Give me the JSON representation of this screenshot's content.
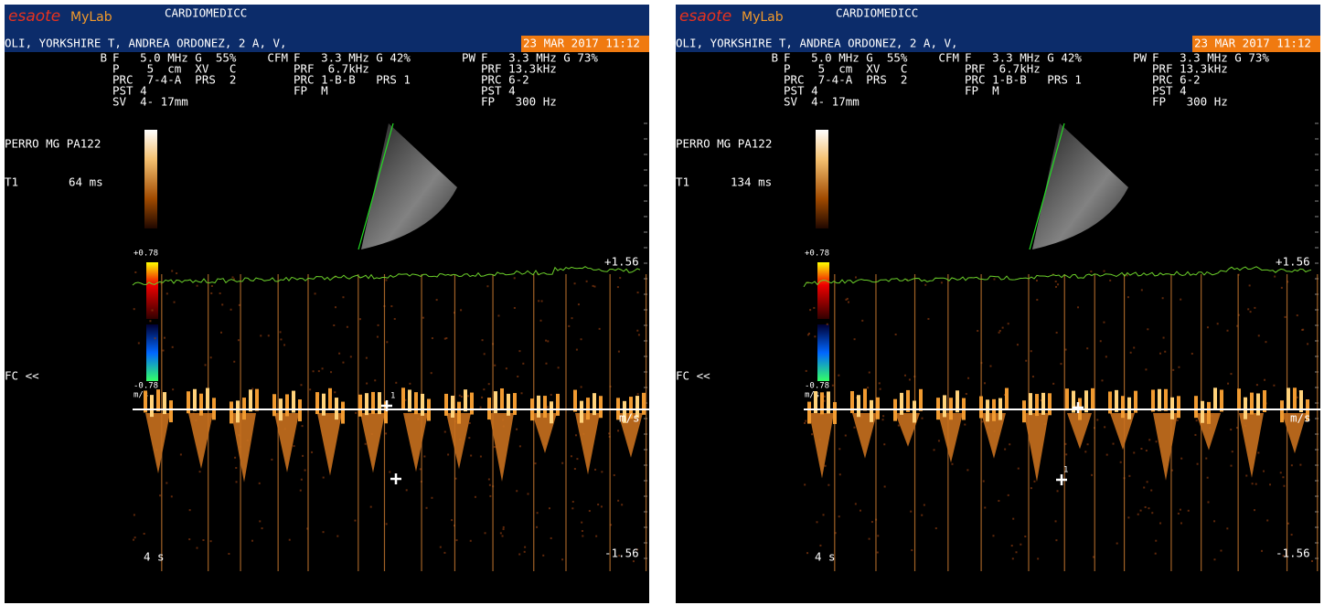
{
  "panels": [
    {
      "logo": {
        "brand": "esaote",
        "product": "MyLab"
      },
      "device": "CARDIOMEDICC",
      "patient": "OLI, YORKSHIRE T, ANDREA ORDONEZ, 2 A, V,",
      "datetime": "23 MAR 2017 11:12",
      "params": {
        "b": {
          "mode": "B",
          "lines": [
            "F   5.0 MHz G  55%",
            "P    5  cm  XV   C",
            "PRC  7-4-A  PRS  2",
            "PST 4",
            "SV  4- 17mm"
          ]
        },
        "cfm": {
          "mode": "CFM",
          "lines": [
            "F   3.3 MHz G 42%",
            "PRF  6.7kHz",
            "PRC 1-B-B   PRS 1",
            "FP  M"
          ]
        },
        "pw": {
          "mode": "PW",
          "lines": [
            "F   3.3 MHz G 73%",
            "PRF 13.3kHz",
            "PRC 6-2",
            "PST 4",
            "FP   300 Hz"
          ]
        }
      },
      "probe": "PERRO MG PA122",
      "measure": {
        "label": "T1",
        "value": "64 ms"
      },
      "rate": "FC <<",
      "color_scale": {
        "max": "+0.78",
        "min": "-0.78",
        "unit": "m/s"
      },
      "doppler_scale": {
        "max": "+1.56",
        "min": "-1.56",
        "unit": "m/s"
      },
      "sweep": "4 s",
      "cursor": "1"
    },
    {
      "logo": {
        "brand": "esaote",
        "product": "MyLab"
      },
      "device": "CARDIOMEDICC",
      "patient": "OLI, YORKSHIRE T, ANDREA ORDONEZ, 2 A, V,",
      "datetime": "23 MAR 2017 11:12",
      "params": {
        "b": {
          "mode": "B",
          "lines": [
            "F   5.0 MHz G  55%",
            "P    5  cm  XV   C",
            "PRC  7-4-A  PRS  2",
            "PST 4",
            "SV  4- 17mm"
          ]
        },
        "cfm": {
          "mode": "CFM",
          "lines": [
            "F   3.3 MHz G 42%",
            "PRF  6.7kHz",
            "PRC 1-B-B   PRS 1",
            "FP  M"
          ]
        },
        "pw": {
          "mode": "PW",
          "lines": [
            "F   3.3 MHz G 73%",
            "PRF 13.3kHz",
            "PRC 6-2",
            "PST 4",
            "FP   300 Hz"
          ]
        }
      },
      "probe": "PERRO MG PA122",
      "measure": {
        "label": "T1",
        "value": "134 ms"
      },
      "rate": "FC <<",
      "color_scale": {
        "max": "+0.78",
        "min": "-0.78",
        "unit": "m/s"
      },
      "doppler_scale": {
        "max": "+1.56",
        "min": "-1.56",
        "unit": "m/s"
      },
      "sweep": "4 s",
      "cursor": "1"
    }
  ]
}
